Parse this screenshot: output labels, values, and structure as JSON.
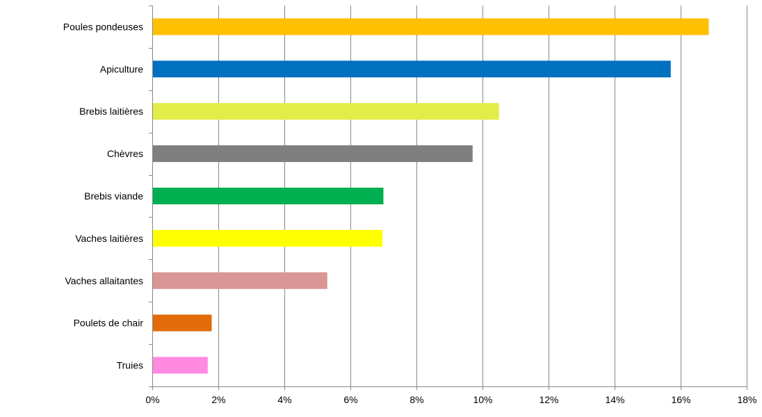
{
  "chart_data": {
    "type": "bar",
    "orientation": "horizontal",
    "categories": [
      "Poules pondeuses",
      "Apiculture",
      "Brebis laitières",
      "Chèvres",
      "Brebis viande",
      "Vaches laitières",
      "Vaches allaitantes",
      "Poulets de chair",
      "Truies"
    ],
    "values": [
      16.85,
      15.7,
      10.5,
      9.7,
      7.0,
      6.97,
      5.3,
      1.8,
      1.68
    ],
    "colors": [
      "#FFC000",
      "#0070C0",
      "#E1EE4A",
      "#7F7F7F",
      "#00B050",
      "#FFFF00",
      "#D99694",
      "#E36C0A",
      "#FF8AE0"
    ],
    "xlim": [
      0,
      18
    ],
    "xticks": [
      0,
      2,
      4,
      6,
      8,
      10,
      12,
      14,
      16,
      18
    ],
    "tick_labels": [
      "0%",
      "2%",
      "4%",
      "6%",
      "8%",
      "10%",
      "12%",
      "14%",
      "16%",
      "18%"
    ],
    "grid": true,
    "title": "",
    "xlabel": "",
    "ylabel": ""
  }
}
